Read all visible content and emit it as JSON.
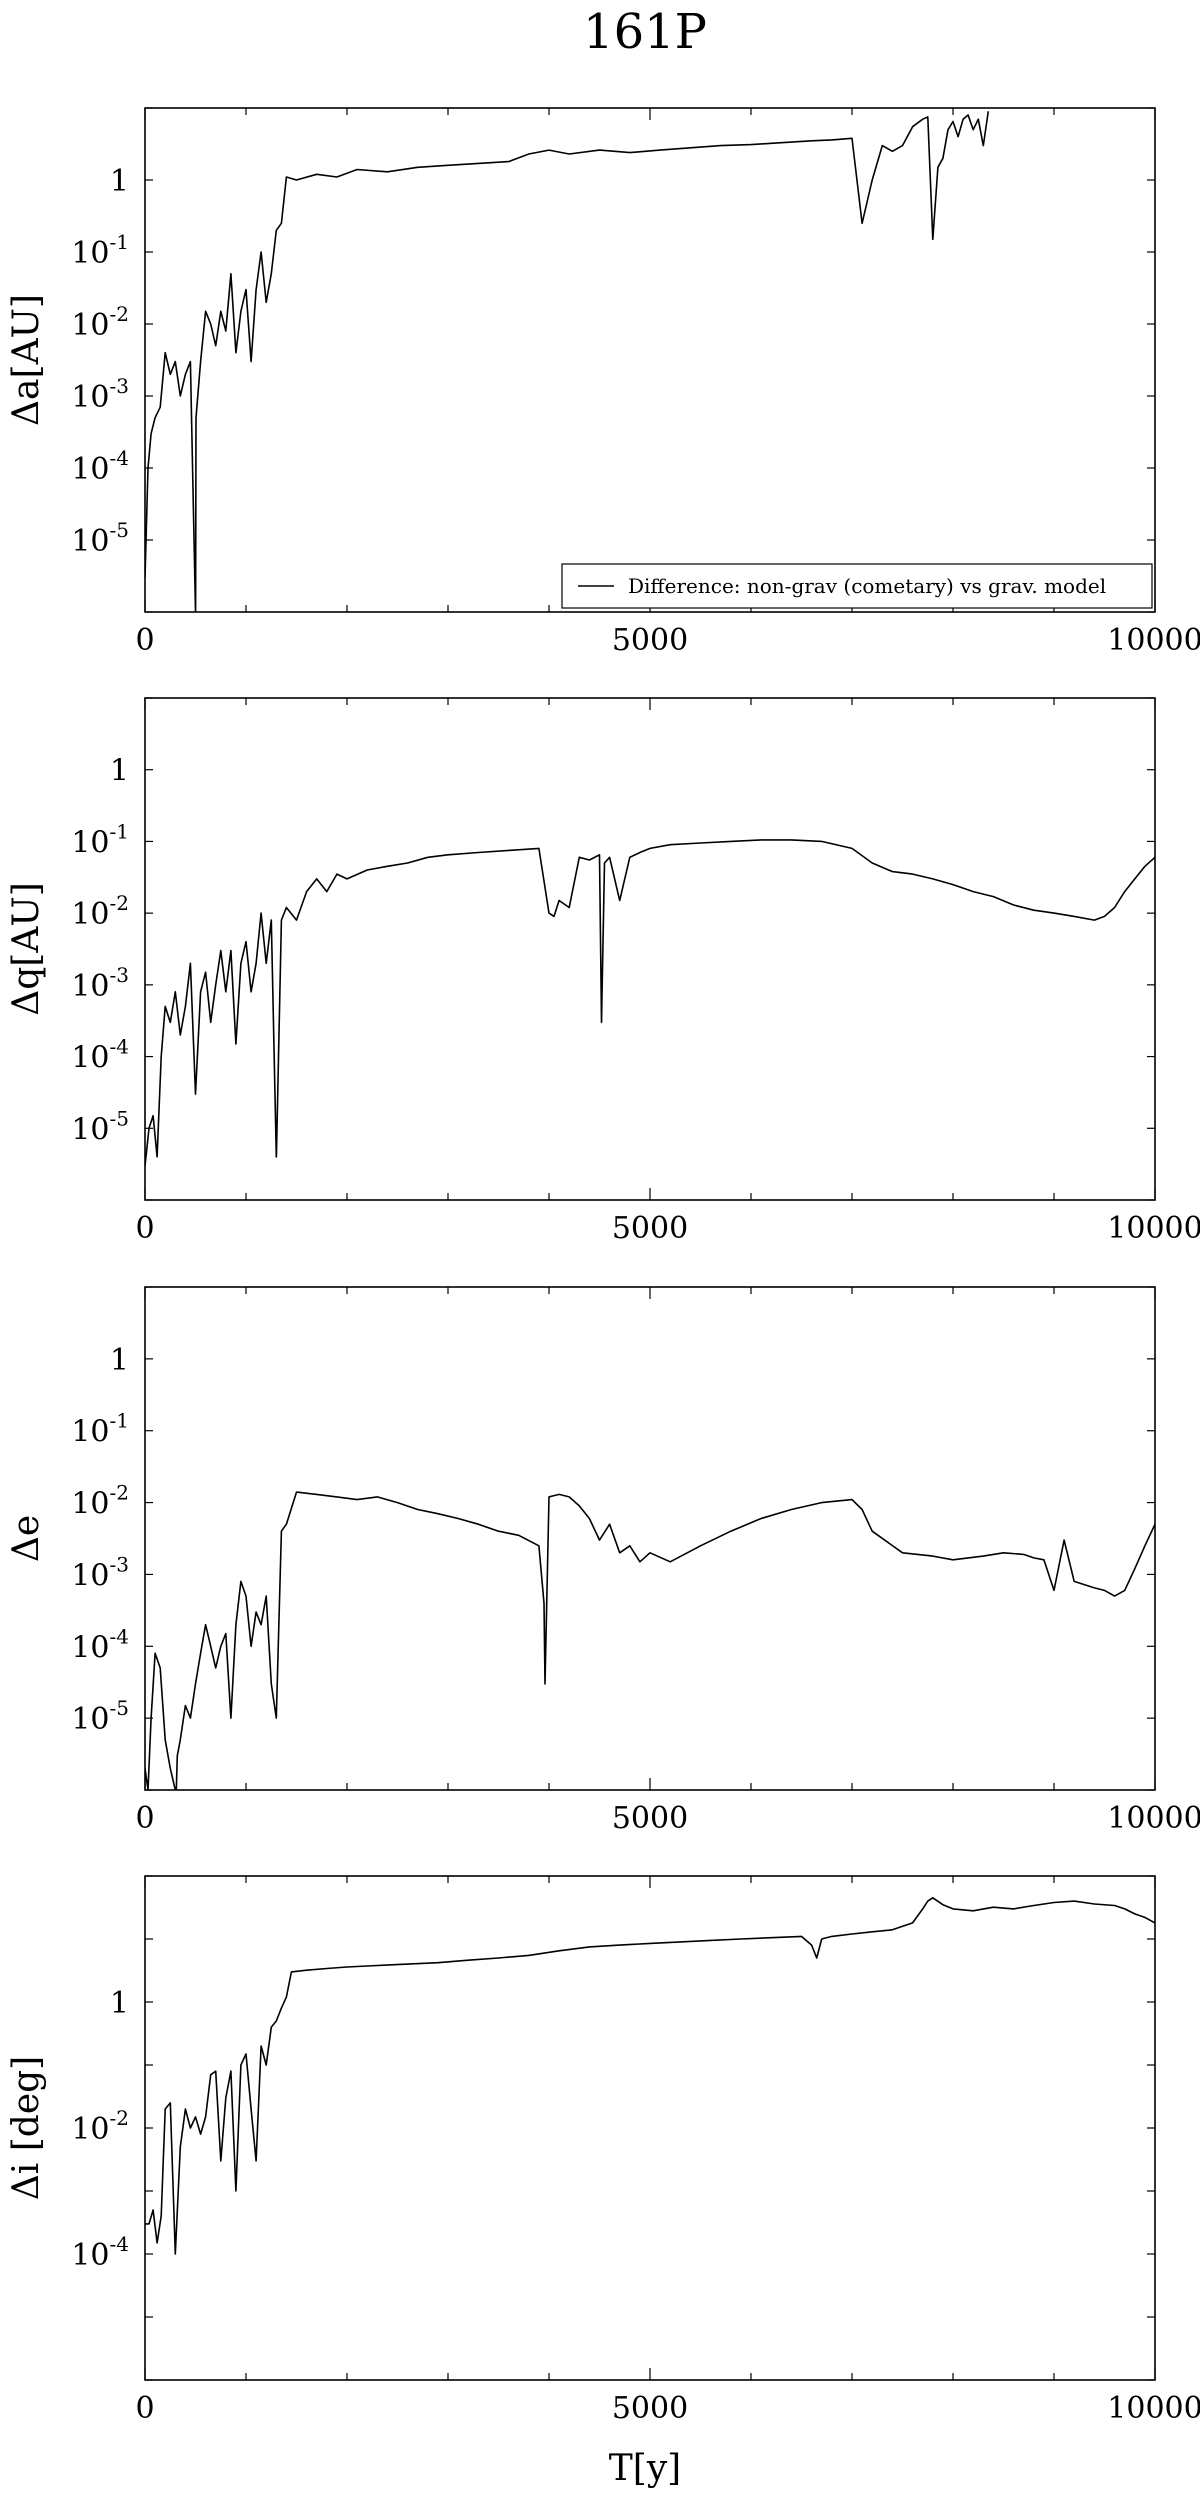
{
  "title": "161P",
  "xlabel": "T[y]",
  "chart_data": [
    {
      "type": "line",
      "ylabel": "Δa[AU]",
      "yscale": "log",
      "xlim": [
        0,
        10000
      ],
      "ylim_exp": [
        -6,
        1
      ],
      "xticks": [
        {
          "v": 0,
          "label": "0"
        },
        {
          "v": 5000,
          "label": "5000"
        },
        {
          "v": 10000,
          "label": "10000"
        }
      ],
      "yticks": [
        {
          "e": -5,
          "base": "10",
          "exp": "-5"
        },
        {
          "e": -4,
          "base": "10",
          "exp": "-4"
        },
        {
          "e": -3,
          "base": "10",
          "exp": "-3"
        },
        {
          "e": -2,
          "base": "10",
          "exp": "-2"
        },
        {
          "e": -1,
          "base": "10",
          "exp": "-1"
        },
        {
          "e": 0,
          "base": "1",
          "exp": ""
        }
      ],
      "legend": {
        "label": "Difference: non-grav (cometary) vs grav. model",
        "position": "bottom-right"
      },
      "series": [
        {
          "x": [
            0,
            30,
            60,
            100,
            150,
            200,
            250,
            300,
            350,
            400,
            450,
            500,
            501,
            505,
            550,
            600,
            650,
            700,
            750,
            800,
            850,
            900,
            950,
            1000,
            1050,
            1100,
            1150,
            1200,
            1250,
            1300,
            1350,
            1400,
            1500,
            1700,
            1900,
            2100,
            2400,
            2700,
            3000,
            3300,
            3600,
            3800,
            4000,
            4200,
            4500,
            4800,
            5100,
            5400,
            5700,
            6000,
            6300,
            6600,
            6800,
            7000,
            7100,
            7200,
            7300,
            7400,
            7500,
            7600,
            7700,
            7750,
            7800,
            7850,
            7900,
            7950,
            8000,
            8050,
            8100,
            8150,
            8200,
            8250,
            8300,
            8350
          ],
          "y": [
            3e-06,
            0.0001,
            0.0003,
            0.0005,
            0.0007,
            0.004,
            0.002,
            0.003,
            0.001,
            0.002,
            0.003,
            1e-06,
            1e-06,
            0.0005,
            0.003,
            0.015,
            0.01,
            0.005,
            0.015,
            0.008,
            0.05,
            0.004,
            0.015,
            0.03,
            0.003,
            0.03,
            0.1,
            0.02,
            0.05,
            0.2,
            0.25,
            1.1,
            1.0,
            1.2,
            1.1,
            1.4,
            1.3,
            1.5,
            1.6,
            1.7,
            1.8,
            2.3,
            2.6,
            2.3,
            2.6,
            2.4,
            2.6,
            2.8,
            3.0,
            3.1,
            3.3,
            3.5,
            3.6,
            3.8,
            0.25,
            1.0,
            3.0,
            2.5,
            3.0,
            5.5,
            7.0,
            7.5,
            0.15,
            1.5,
            2.0,
            5.0,
            6.5,
            4.0,
            7.0,
            8.0,
            5.0,
            7.0,
            3.0,
            9.0
          ]
        }
      ]
    },
    {
      "type": "line",
      "ylabel": "Δq[AU]",
      "yscale": "log",
      "xlim": [
        0,
        10000
      ],
      "ylim_exp": [
        -6,
        1
      ],
      "xticks": [
        {
          "v": 0,
          "label": "0"
        },
        {
          "v": 5000,
          "label": "5000"
        },
        {
          "v": 10000,
          "label": "10000"
        }
      ],
      "yticks": [
        {
          "e": -5,
          "base": "10",
          "exp": "-5"
        },
        {
          "e": -4,
          "base": "10",
          "exp": "-4"
        },
        {
          "e": -3,
          "base": "10",
          "exp": "-3"
        },
        {
          "e": -2,
          "base": "10",
          "exp": "-2"
        },
        {
          "e": -1,
          "base": "10",
          "exp": "-1"
        },
        {
          "e": 0,
          "base": "1",
          "exp": ""
        }
      ],
      "series": [
        {
          "x": [
            0,
            40,
            80,
            120,
            160,
            200,
            250,
            300,
            350,
            400,
            450,
            500,
            550,
            600,
            650,
            700,
            750,
            800,
            850,
            900,
            950,
            1000,
            1050,
            1100,
            1150,
            1200,
            1250,
            1300,
            1301,
            1350,
            1400,
            1500,
            1600,
            1700,
            1800,
            1900,
            2000,
            2200,
            2400,
            2600,
            2800,
            3000,
            3300,
            3600,
            3900,
            4000,
            4050,
            4100,
            4200,
            4300,
            4400,
            4500,
            4520,
            4550,
            4600,
            4700,
            4800,
            4900,
            5000,
            5200,
            5500,
            5800,
            6100,
            6400,
            6700,
            7000,
            7200,
            7400,
            7600,
            7800,
            8000,
            8200,
            8400,
            8600,
            8800,
            9000,
            9200,
            9400,
            9500,
            9600,
            9700,
            9800,
            9900,
            10000
          ],
          "y": [
            3e-06,
            1e-05,
            1.5e-05,
            4e-06,
            0.0001,
            0.0005,
            0.0003,
            0.0008,
            0.0002,
            0.0005,
            0.002,
            3e-05,
            0.0008,
            0.0015,
            0.0003,
            0.001,
            0.003,
            0.0008,
            0.003,
            0.00015,
            0.002,
            0.004,
            0.0008,
            0.002,
            0.01,
            0.002,
            0.008,
            4e-06,
            4e-06,
            0.008,
            0.012,
            0.008,
            0.02,
            0.03,
            0.02,
            0.035,
            0.03,
            0.04,
            0.045,
            0.05,
            0.06,
            0.065,
            0.07,
            0.075,
            0.08,
            0.01,
            0.009,
            0.015,
            0.012,
            0.06,
            0.055,
            0.065,
            0.0003,
            0.05,
            0.06,
            0.015,
            0.06,
            0.07,
            0.08,
            0.09,
            0.095,
            0.1,
            0.105,
            0.105,
            0.1,
            0.08,
            0.05,
            0.038,
            0.035,
            0.03,
            0.025,
            0.02,
            0.017,
            0.013,
            0.011,
            0.01,
            0.009,
            0.008,
            0.009,
            0.012,
            0.02,
            0.03,
            0.045,
            0.06
          ]
        }
      ]
    },
    {
      "type": "line",
      "ylabel": "Δe",
      "yscale": "log",
      "xlim": [
        0,
        10000
      ],
      "ylim_exp": [
        -6,
        1
      ],
      "xticks": [
        {
          "v": 0,
          "label": "0"
        },
        {
          "v": 5000,
          "label": "5000"
        },
        {
          "v": 10000,
          "label": "10000"
        }
      ],
      "yticks": [
        {
          "e": -5,
          "base": "10",
          "exp": "-5"
        },
        {
          "e": -4,
          "base": "10",
          "exp": "-4"
        },
        {
          "e": -3,
          "base": "10",
          "exp": "-3"
        },
        {
          "e": -2,
          "base": "10",
          "exp": "-2"
        },
        {
          "e": -1,
          "base": "10",
          "exp": "-1"
        },
        {
          "e": 0,
          "base": "1",
          "exp": ""
        }
      ],
      "series": [
        {
          "x": [
            0,
            30,
            60,
            100,
            150,
            200,
            250,
            300,
            310,
            320,
            350,
            400,
            450,
            500,
            550,
            600,
            650,
            700,
            750,
            800,
            850,
            900,
            950,
            1000,
            1050,
            1100,
            1150,
            1200,
            1250,
            1300,
            1350,
            1400,
            1500,
            1700,
            1900,
            2100,
            2300,
            2500,
            2700,
            2900,
            3100,
            3300,
            3500,
            3700,
            3900,
            3950,
            3960,
            4000,
            4100,
            4200,
            4300,
            4400,
            4500,
            4600,
            4700,
            4800,
            4900,
            5000,
            5200,
            5500,
            5800,
            6100,
            6400,
            6700,
            7000,
            7100,
            7200,
            7500,
            7800,
            8000,
            8300,
            8500,
            8700,
            8800,
            8900,
            9000,
            9100,
            9200,
            9400,
            9500,
            9600,
            9700,
            9800,
            9900,
            10000
          ],
          "y": [
            2e-06,
            1e-06,
            1e-05,
            8e-05,
            5e-05,
            5e-06,
            2e-06,
            1e-06,
            1e-06,
            3e-06,
            5e-06,
            1.5e-05,
            1e-05,
            3e-05,
            8e-05,
            0.0002,
            0.0001,
            5e-05,
            0.0001,
            0.00015,
            1e-05,
            0.0002,
            0.0008,
            0.0005,
            0.0001,
            0.0003,
            0.0002,
            0.0005,
            3e-05,
            1e-05,
            0.004,
            0.005,
            0.014,
            0.013,
            0.012,
            0.011,
            0.012,
            0.01,
            0.008,
            0.007,
            0.006,
            0.005,
            0.004,
            0.0035,
            0.0025,
            0.0004,
            3e-05,
            0.012,
            0.013,
            0.012,
            0.009,
            0.006,
            0.003,
            0.005,
            0.002,
            0.0025,
            0.0015,
            0.002,
            0.0015,
            0.0025,
            0.004,
            0.006,
            0.008,
            0.01,
            0.011,
            0.008,
            0.004,
            0.002,
            0.0018,
            0.0016,
            0.0018,
            0.002,
            0.0019,
            0.0017,
            0.0016,
            0.0006,
            0.003,
            0.0008,
            0.00065,
            0.0006,
            0.0005,
            0.0006,
            0.0012,
            0.0025,
            0.005
          ]
        }
      ]
    },
    {
      "type": "line",
      "ylabel": "Δi [deg]",
      "yscale": "log",
      "xlim": [
        0,
        10000
      ],
      "ylim_exp": [
        -6,
        2
      ],
      "xticks": [
        {
          "v": 0,
          "label": "0"
        },
        {
          "v": 5000,
          "label": "5000"
        },
        {
          "v": 10000,
          "label": "10000"
        }
      ],
      "yticks": [
        {
          "e": -4,
          "base": "10",
          "exp": "-4"
        },
        {
          "e": -2,
          "base": "10",
          "exp": "-2"
        },
        {
          "e": 0,
          "base": "1",
          "exp": ""
        }
      ],
      "series": [
        {
          "x": [
            0,
            40,
            80,
            120,
            160,
            200,
            250,
            300,
            350,
            400,
            450,
            500,
            550,
            600,
            650,
            700,
            750,
            800,
            850,
            900,
            950,
            1000,
            1050,
            1100,
            1150,
            1200,
            1250,
            1300,
            1350,
            1400,
            1450,
            1600,
            1800,
            2000,
            2300,
            2600,
            2900,
            3200,
            3500,
            3800,
            4100,
            4400,
            4700,
            5000,
            5300,
            5600,
            5900,
            6200,
            6500,
            6600,
            6650,
            6700,
            6800,
            7000,
            7200,
            7400,
            7600,
            7700,
            7750,
            7800,
            7900,
            8000,
            8200,
            8400,
            8600,
            8800,
            9000,
            9200,
            9400,
            9600,
            9700,
            9800,
            9900,
            10000
          ],
          "y": [
            0.0003,
            0.0003,
            0.0005,
            0.00015,
            0.0004,
            0.02,
            0.025,
            0.0001,
            0.005,
            0.02,
            0.01,
            0.015,
            0.008,
            0.015,
            0.07,
            0.08,
            0.003,
            0.03,
            0.08,
            0.001,
            0.1,
            0.15,
            0.02,
            0.003,
            0.2,
            0.1,
            0.4,
            0.5,
            0.8,
            1.2,
            3.0,
            3.2,
            3.4,
            3.6,
            3.8,
            4.0,
            4.2,
            4.6,
            5.0,
            5.5,
            6.5,
            7.5,
            8.0,
            8.5,
            9.0,
            9.5,
            10.0,
            10.5,
            11.0,
            8.0,
            5.0,
            10.0,
            11.0,
            12.0,
            13.0,
            14.0,
            18.0,
            30.0,
            40.0,
            45.0,
            35.0,
            30.0,
            28.0,
            32.0,
            30.0,
            34.0,
            38.0,
            40.0,
            36.0,
            34.0,
            30.0,
            25.0,
            22.0,
            18.0
          ]
        }
      ]
    }
  ]
}
